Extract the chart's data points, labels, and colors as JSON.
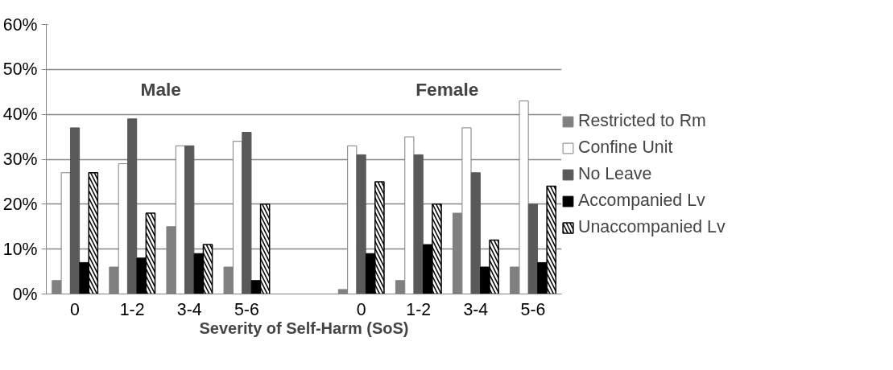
{
  "chart_data": {
    "type": "bar",
    "xlabel": "Severity of Self-Harm (SoS)",
    "categories": [
      "0",
      "1-2",
      "3-4",
      "5-6",
      null,
      "0",
      "1-2",
      "3-4",
      "5-6"
    ],
    "series": [
      {
        "name": "Restricted to Rm",
        "color": "#808080",
        "values": [
          3,
          6,
          15,
          6,
          null,
          1,
          3,
          18,
          6
        ]
      },
      {
        "name": "Confine Unit",
        "color": "#ffffff",
        "values": [
          27,
          29,
          33,
          34,
          null,
          33,
          35,
          37,
          43
        ]
      },
      {
        "name": "No Leave",
        "color": "#595959",
        "values": [
          37,
          39,
          33,
          36,
          null,
          31,
          31,
          27,
          20
        ]
      },
      {
        "name": "Accompanied Lv",
        "color": "#000000",
        "values": [
          7,
          8,
          9,
          3,
          null,
          9,
          11,
          6,
          7
        ]
      },
      {
        "name": "Unaccompanied Lv",
        "color": "#000000",
        "values": [
          27,
          18,
          11,
          20,
          null,
          25,
          20,
          12,
          24
        ]
      }
    ],
    "annotations": [
      "Male",
      "Female"
    ],
    "ylim": [
      0,
      60
    ],
    "yticks": [
      {
        "value": 0,
        "label": "0%"
      },
      {
        "value": 10,
        "label": "10%"
      },
      {
        "value": 20,
        "label": "20%"
      },
      {
        "value": 30,
        "label": "30%"
      },
      {
        "value": 40,
        "label": "40%"
      },
      {
        "value": 50,
        "label": "50%"
      },
      {
        "value": 60,
        "label": "60%"
      }
    ],
    "grid": "y",
    "legend": "right"
  }
}
